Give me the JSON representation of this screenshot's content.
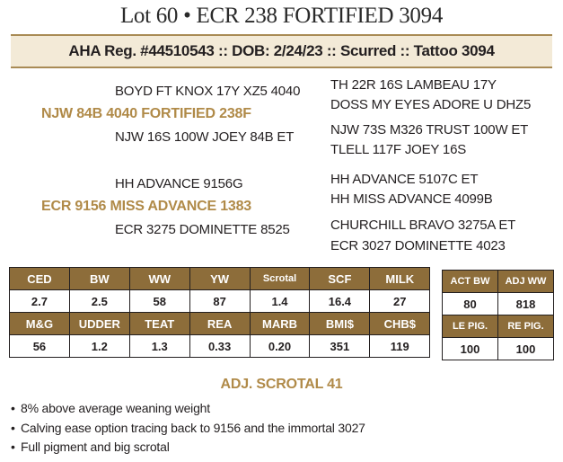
{
  "lot_title": "Lot 60 • ECR 238 FORTIFIED 3094",
  "registration_line": "AHA Reg. #44510543 :: DOB: 2/24/23 :: Scurred :: Tattoo 3094",
  "pedigree": {
    "sire": "NJW 84B 4040 FORTIFIED 238F",
    "sire_sire": "BOYD FT KNOX 17Y XZ5 4040",
    "sire_dam": "NJW 16S 100W JOEY 84B ET",
    "sire_sire_sire": "TH 22R 16S LAMBEAU 17Y",
    "sire_sire_dam": "DOSS MY EYES ADORE U DHZ5",
    "sire_dam_sire": "NJW 73S M326 TRUST 100W ET",
    "sire_dam_dam": "TLELL 117F JOEY 16S",
    "dam": "ECR 9156 MISS ADVANCE 1383",
    "dam_sire": "HH ADVANCE 9156G",
    "dam_dam": "ECR 3275 DOMINETTE 8525",
    "dam_sire_sire": "HH ADVANCE 5107C ET",
    "dam_sire_dam": "HH MISS ADVANCE 4099B",
    "dam_dam_sire": "CHURCHILL BRAVO 3275A ET",
    "dam_dam_dam": "ECR 3027 DOMINETTE 4023"
  },
  "epd_table": {
    "row1_headers": [
      "CED",
      "BW",
      "WW",
      "YW",
      "Scrotal",
      "SCF",
      "MILK"
    ],
    "row1_values": [
      "2.7",
      "2.5",
      "58",
      "87",
      "1.4",
      "16.4",
      "27"
    ],
    "row2_headers": [
      "M&G",
      "UDDER",
      "TEAT",
      "REA",
      "MARB",
      "BMI$",
      "CHB$"
    ],
    "row2_values": [
      "56",
      "1.2",
      "1.3",
      "0.33",
      "0.20",
      "351",
      "119"
    ]
  },
  "actual_table": {
    "row1_headers": [
      "ACT BW",
      "ADJ WW"
    ],
    "row1_values": [
      "80",
      "818"
    ],
    "row2_headers": [
      "LE PIG.",
      "RE PIG."
    ],
    "row2_values": [
      "100",
      "100"
    ]
  },
  "colors": {
    "header_fill": "#8d6d3a",
    "gold_text": "#b08a48",
    "reg_band": "#f3ead7",
    "rule": "#a98b55"
  },
  "adj_scrotal": "ADJ. SCROTAL 41",
  "notes": [
    "8% above average weaning weight",
    "Calving ease option tracing back to 9156 and the immortal 3027",
    "Full pigment and big scrotal"
  ]
}
